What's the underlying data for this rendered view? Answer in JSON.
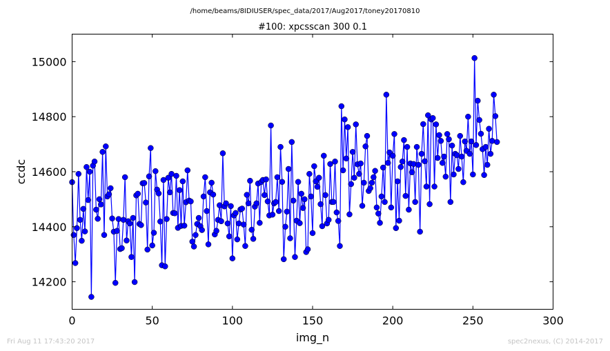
{
  "chart_data": {
    "type": "line",
    "suptitle": "/home/beams/8IDIUSER/spec_data/2017/Aug2017/toney20170810",
    "title": "#100: xpcsscan 300 0.1",
    "xlabel": "img_n",
    "ylabel": "ccdc",
    "xlim": [
      0,
      300
    ],
    "ylim": [
      14100,
      15100
    ],
    "xticks": [
      0,
      50,
      100,
      150,
      200,
      250,
      300
    ],
    "yticks": [
      14200,
      14400,
      14600,
      14800,
      15000
    ],
    "grid": false,
    "series": [
      {
        "color": "#0000ff",
        "marker": "circle",
        "y": [
          14562,
          14370,
          14268,
          14395,
          14592,
          14425,
          14349,
          14465,
          14383,
          14617,
          14497,
          14600,
          14145,
          14622,
          14637,
          14462,
          14429,
          14500,
          14481,
          14672,
          14370,
          14692,
          14510,
          14518,
          14540,
          14430,
          14382,
          14196,
          14385,
          14428,
          14319,
          14322,
          14425,
          14580,
          14350,
          14420,
          14412,
          14290,
          14432,
          14199,
          14514,
          14520,
          14410,
          14406,
          14558,
          14559,
          14488,
          14317,
          14583,
          14686,
          14332,
          14378,
          14602,
          14535,
          14521,
          14419,
          14260,
          14570,
          14256,
          14428,
          14578,
          14525,
          14592,
          14450,
          14449,
          14585,
          14396,
          14533,
          14403,
          14565,
          14404,
          14489,
          14605,
          14495,
          14492,
          14346,
          14328,
          14370,
          14410,
          14432,
          14402,
          14388,
          14510,
          14580,
          14457,
          14336,
          14525,
          14560,
          14517,
          14372,
          14385,
          14425,
          14478,
          14420,
          14667,
          14474,
          14485,
          14412,
          14365,
          14475,
          14285,
          14441,
          14450,
          14354,
          14412,
          14463,
          14466,
          14408,
          14330,
          14516,
          14485,
          14567,
          14389,
          14356,
          14473,
          14485,
          14557,
          14414,
          14563,
          14570,
          14515,
          14572,
          14492,
          14441,
          14768,
          14444,
          14485,
          14490,
          14580,
          14457,
          14690,
          14563,
          14282,
          14400,
          14455,
          14610,
          14358,
          14708,
          14495,
          14290,
          14422,
          14563,
          14413,
          14520,
          14468,
          14500,
          14308,
          14318,
          14592,
          14510,
          14377,
          14620,
          14565,
          14545,
          14578,
          14482,
          14402,
          14658,
          14515,
          14412,
          14425,
          14628,
          14490,
          14490,
          14637,
          14452,
          14421,
          14330,
          14838,
          14605,
          14790,
          14648,
          14762,
          14445,
          14555,
          14672,
          14578,
          14772,
          14627,
          14592,
          14630,
          14476,
          14560,
          14692,
          14730,
          14530,
          14540,
          14560,
          14580,
          14603,
          14470,
          14448,
          14414,
          14510,
          14615,
          14490,
          14880,
          14632,
          14670,
          14470,
          14658,
          14737,
          14395,
          14565,
          14422,
          14617,
          14637,
          14715,
          14512,
          14690,
          14462,
          14630,
          14598,
          14628,
          14490,
          14690,
          14625,
          14382,
          14665,
          14773,
          14638,
          14546,
          14805,
          14482,
          14790,
          14795,
          14546,
          14772,
          14650,
          14733,
          14712,
          14632,
          14655,
          14582,
          14737,
          14718,
          14490,
          14695,
          14590,
          14665,
          14660,
          14610,
          14730,
          14655,
          14562,
          14710,
          14676,
          14800,
          14665,
          14710,
          14590,
          15013,
          14697,
          14858,
          14788,
          14738,
          14682,
          14588,
          14690,
          14625,
          14756,
          14665,
          14712,
          14880,
          14802,
          14708
        ]
      }
    ]
  },
  "footer": {
    "left": "Fri Aug 11 17:43:20 2017",
    "right": "spec2nexus, (C) 2014-2017"
  }
}
